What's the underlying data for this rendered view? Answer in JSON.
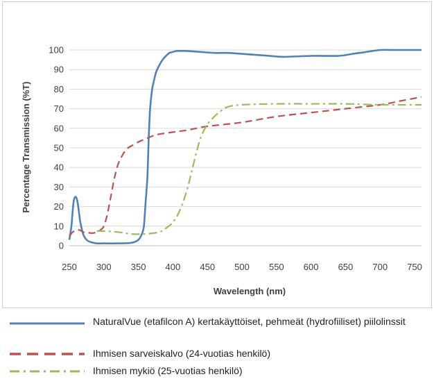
{
  "chart_data": {
    "type": "line",
    "title": "",
    "xlabel": "Wavelength (nm)",
    "ylabel": "Percentage Transmission (%T)",
    "xlim": [
      250,
      760
    ],
    "ylim": [
      0,
      100
    ],
    "xticks": [
      250,
      300,
      350,
      400,
      450,
      500,
      550,
      600,
      650,
      700,
      750
    ],
    "yticks": [
      0,
      10,
      20,
      30,
      40,
      50,
      60,
      70,
      80,
      90,
      100
    ],
    "grid": "horizontal",
    "legend_position": "bottom",
    "series": [
      {
        "name": "NaturalVue (etafilcon A) kertakäyttöiset, pehmeät (hydrofiiliset) piilolinssit",
        "color": "#4f81bd",
        "style": "solid",
        "x": [
          250,
          253,
          256,
          259,
          262,
          266,
          270,
          275,
          280,
          285,
          290,
          300,
          320,
          340,
          350,
          355,
          358,
          360,
          363,
          365,
          367,
          370,
          373,
          376,
          380,
          385,
          390,
          395,
          400,
          405,
          410,
          420,
          440,
          460,
          480,
          500,
          520,
          540,
          560,
          600,
          640,
          660,
          680,
          700,
          720,
          740,
          760
        ],
        "y": [
          3,
          10,
          22,
          25,
          22,
          12,
          6,
          3,
          2,
          1.5,
          1.2,
          1.2,
          1.2,
          1.5,
          3,
          6,
          10,
          20,
          35,
          55,
          70,
          80,
          85,
          89,
          92,
          95,
          97,
          98.5,
          99,
          99.5,
          99.5,
          99.5,
          99,
          98.5,
          98.5,
          98,
          97.5,
          97,
          96.5,
          97,
          97,
          98,
          99,
          100,
          100,
          100,
          100
        ]
      },
      {
        "name": "Ihmisen sarveiskalvo (24-vuotias henkilö)",
        "color": "#c0504d",
        "style": "dashed",
        "x": [
          250,
          255,
          260,
          265,
          270,
          275,
          280,
          285,
          290,
          295,
          300,
          305,
          310,
          315,
          320,
          325,
          330,
          335,
          340,
          350,
          360,
          370,
          380,
          400,
          420,
          450,
          500,
          550,
          600,
          650,
          700,
          730,
          760
        ],
        "y": [
          5,
          7,
          8,
          8,
          7,
          7,
          6.5,
          6.5,
          7,
          8,
          10,
          16,
          25,
          34,
          41,
          45,
          48,
          50,
          51,
          53,
          54.5,
          56,
          57,
          58,
          59,
          61,
          63,
          66,
          68,
          70,
          72,
          74,
          76
        ]
      },
      {
        "name": "Ihmisen mykiö (25-vuotias henkilö)",
        "color": "#9bbb59",
        "style": "dashdot",
        "x": [
          290,
          300,
          320,
          340,
          360,
          380,
          390,
          400,
          410,
          420,
          430,
          440,
          450,
          460,
          470,
          480,
          500,
          550,
          600,
          650,
          700,
          760
        ],
        "y": [
          7.5,
          7.5,
          7,
          6,
          6,
          7,
          9,
          12,
          18,
          28,
          42,
          55,
          62,
          66,
          69,
          71,
          72,
          72.5,
          72.5,
          72.5,
          72,
          72
        ]
      }
    ]
  }
}
